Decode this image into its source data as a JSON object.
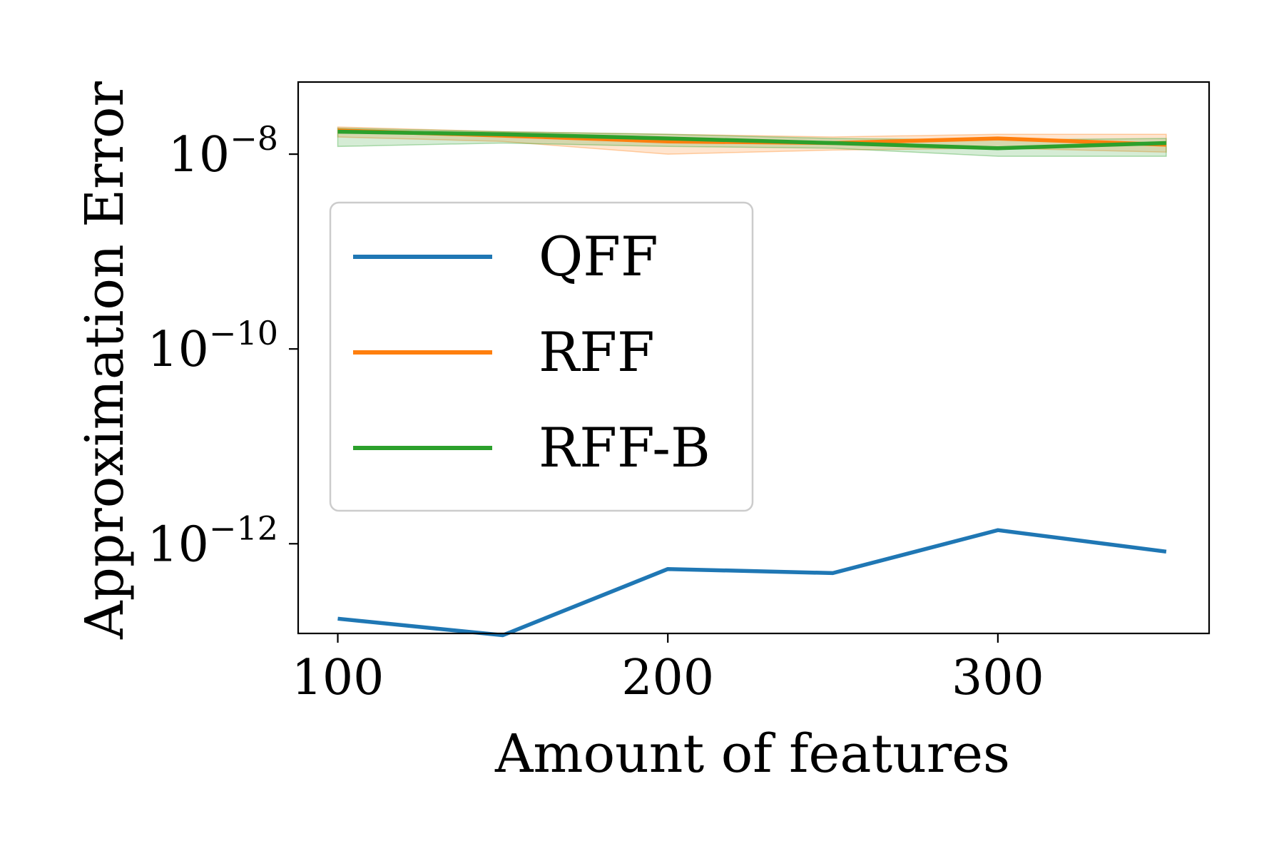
{
  "chart_data": {
    "type": "line",
    "title": "",
    "xlabel": "Amount of features",
    "ylabel": "Approximation Error",
    "yscale": "log",
    "xlim": [
      88,
      364
    ],
    "ylim": [
      1.2e-13,
      5.5e-08
    ],
    "x_ticks": [
      {
        "value": 100,
        "label": "100"
      },
      {
        "value": 200,
        "label": "200"
      },
      {
        "value": 300,
        "label": "300"
      }
    ],
    "y_ticks": [
      {
        "value": 1e-08,
        "base": "10",
        "exp": "−8"
      },
      {
        "value": 1e-10,
        "base": "10",
        "exp": "−10"
      },
      {
        "value": 1e-12,
        "base": "10",
        "exp": "−12"
      }
    ],
    "x": [
      100,
      150,
      200,
      250,
      300,
      351
    ],
    "series": [
      {
        "name": "QFF",
        "color": "#1f77b4",
        "values": [
          1.7e-13,
          1.15e-13,
          5.5e-13,
          5e-13,
          1.38e-12,
          8.3e-13
        ]
      },
      {
        "name": "RFF",
        "color": "#ff7f0e",
        "values": [
          1.75e-08,
          1.55e-08,
          1.35e-08,
          1.3e-08,
          1.45e-08,
          1.25e-08
        ],
        "band_low": [
          1.5e-08,
          1.35e-08,
          1e-08,
          1.1e-08,
          1.15e-08,
          1.05e-08
        ],
        "band_high": [
          1.9e-08,
          1.7e-08,
          1.6e-08,
          1.5e-08,
          1.6e-08,
          1.6e-08
        ]
      },
      {
        "name": "RFF-B",
        "color": "#2ca02c",
        "values": [
          1.7e-08,
          1.6e-08,
          1.45e-08,
          1.3e-08,
          1.15e-08,
          1.3e-08
        ],
        "band_low": [
          1.2e-08,
          1.3e-08,
          1.2e-08,
          1.15e-08,
          9.5e-09,
          9.5e-09
        ],
        "band_high": [
          1.85e-08,
          1.7e-08,
          1.6e-08,
          1.45e-08,
          1.4e-08,
          1.45e-08
        ]
      }
    ],
    "legend": {
      "position": "center-left"
    },
    "grid": false
  }
}
